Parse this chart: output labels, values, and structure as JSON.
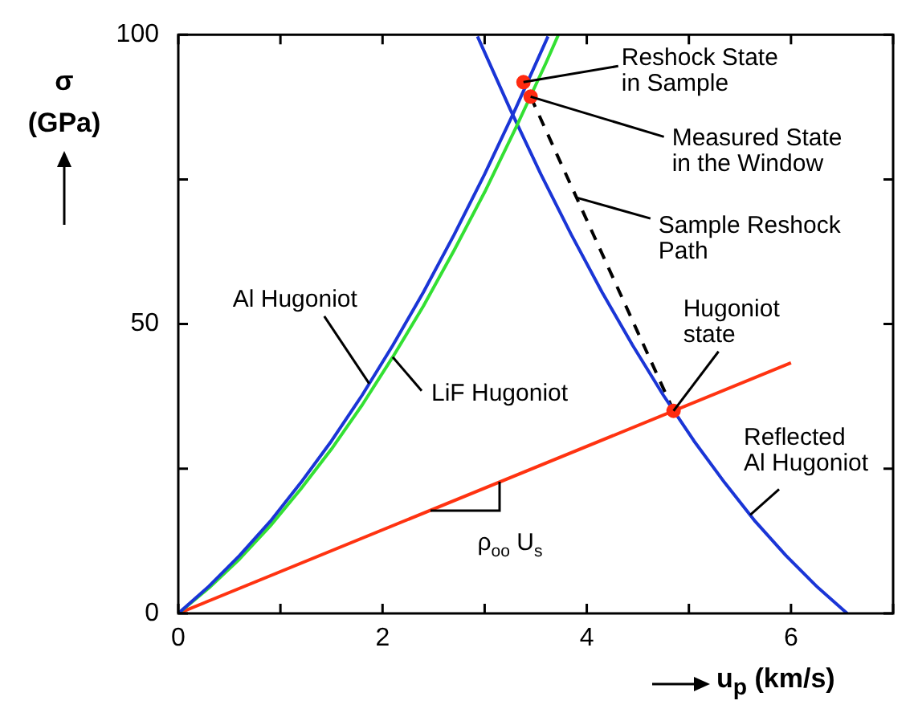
{
  "chart_data": {
    "type": "line",
    "xlabel": "u$_{p}$ (km/s)",
    "ylabel": "σ (GPa)",
    "xlim": [
      0,
      7
    ],
    "xticks": [
      0,
      {
        "value": 1,
        "label": null
      },
      2,
      {
        "value": 3,
        "label": null
      },
      4,
      {
        "value": 5,
        "label": null
      },
      6,
      {
        "value": 7,
        "label": null
      }
    ],
    "ylim": [
      0,
      100
    ],
    "yticks": [
      0,
      {
        "value": 25,
        "label": null
      },
      50,
      {
        "value": 75,
        "label": null
      },
      100
    ],
    "grid": false,
    "legend": false,
    "marker": "none",
    "series": [
      {
        "name": "Al Hugoniot",
        "color": "#1a35d6",
        "x": [
          0,
          0.3,
          0.6,
          0.9,
          1.2,
          1.5,
          1.8,
          2.1,
          2.4,
          2.7,
          3.0,
          3.3,
          3.6,
          3.62
        ],
        "values": [
          0,
          4.7,
          10.0,
          15.9,
          22.6,
          29.8,
          37.7,
          46.3,
          55.5,
          65.4,
          75.9,
          87.1,
          98.9,
          99.7
        ]
      },
      {
        "name": "LiF Hugoniot",
        "color": "#33e033",
        "x": [
          0,
          0.3,
          0.6,
          0.9,
          1.2,
          1.5,
          1.8,
          2.1,
          2.4,
          2.7,
          3.0,
          3.3,
          3.6,
          3.72
        ],
        "values": [
          0,
          4.4,
          9.4,
          15.1,
          21.5,
          28.4,
          36.0,
          44.3,
          53.1,
          62.7,
          72.8,
          83.7,
          95.1,
          99.9
        ]
      },
      {
        "name": "Reflected Al Hugoniot",
        "color": "#1a35d6",
        "x": [
          2.93,
          3.25,
          3.55,
          3.85,
          4.15,
          4.45,
          4.75,
          5.05,
          5.35,
          5.65,
          5.95,
          6.25,
          6.55
        ],
        "values": [
          99.7,
          87.1,
          75.9,
          65.4,
          55.5,
          46.3,
          37.7,
          29.8,
          22.6,
          15.9,
          10.0,
          4.7,
          0
        ]
      },
      {
        "color": "#ff3311",
        "x": [
          0,
          6
        ],
        "values": [
          0,
          43.3
        ]
      },
      {
        "name": "Sample Reshock Path",
        "color": "#000000",
        "line_style": "dashed",
        "x": [
          3.45,
          4.85
        ],
        "values": [
          89.3,
          35.0
        ]
      },
      {
        "type": "scatter",
        "marker": "circle",
        "color": "#ff2a10",
        "x": [
          3.38,
          3.45,
          4.85
        ],
        "values": [
          91.8,
          89.3,
          35.0
        ]
      }
    ],
    "annotations": [
      {
        "text": "Reshock State in Sample",
        "x": 3.38,
        "y": 91.8
      },
      {
        "text": "Measured State in the Window",
        "x": 3.45,
        "y": 89.3
      },
      {
        "text": "Hugoniot state",
        "x": 4.85,
        "y": 35.0
      },
      {
        "text": "ρ$_{oo}$ U$_{s}$",
        "x": 3.15,
        "y": 22.7
      }
    ]
  }
}
